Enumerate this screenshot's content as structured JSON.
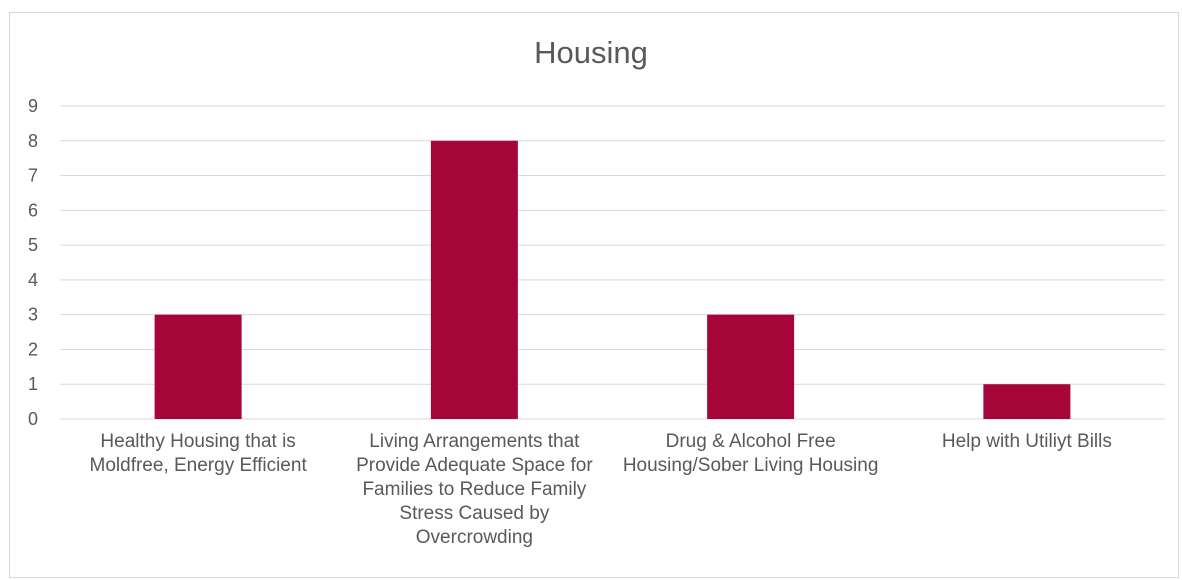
{
  "chart_data": {
    "type": "bar",
    "title": "Housing",
    "categories": [
      "Healthy Housing that is Moldfree, Energy Efficient",
      "Living Arrangements that Provide  Adequate Space for Families to Reduce Family Stress Caused by Overcrowding",
      "Drug & Alcohol Free Housing/Sober Living Housing",
      "Help with Utiliyt Bills"
    ],
    "values": [
      3,
      8,
      3,
      1
    ],
    "ylim": [
      0,
      9
    ],
    "yticks": [
      "0",
      "1",
      "2",
      "3",
      "4",
      "5",
      "6",
      "7",
      "8",
      "9"
    ],
    "xlabel": "",
    "ylabel": "",
    "grid": true,
    "legend": "none",
    "bar_color": "#a50538"
  }
}
